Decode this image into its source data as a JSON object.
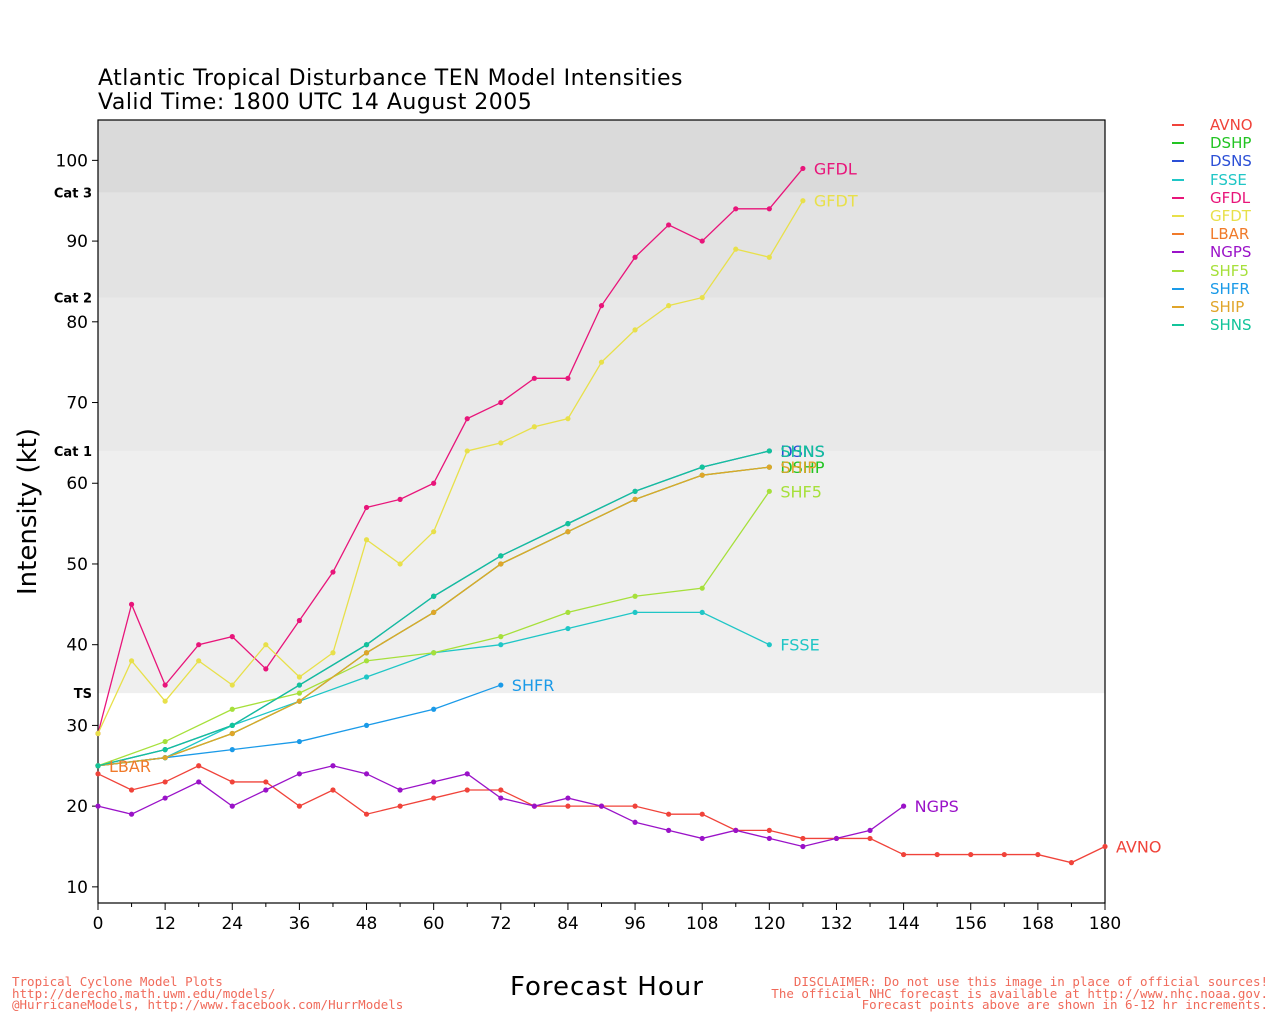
{
  "chart_data": {
    "type": "line",
    "title": "Atlantic Tropical Disturbance TEN Model Intensities",
    "subtitle": "Valid Time: 1800 UTC 14 August 2005",
    "xlabel": "Forecast Hour",
    "ylabel": "Intensity (kt)",
    "xlim": [
      0,
      180
    ],
    "ylim": [
      8,
      105
    ],
    "x_ticks": [
      0,
      12,
      24,
      36,
      48,
      60,
      72,
      84,
      96,
      108,
      120,
      132,
      144,
      156,
      168,
      180
    ],
    "y_ticks": [
      10,
      20,
      30,
      40,
      50,
      60,
      70,
      80,
      90,
      100
    ],
    "bands": [
      {
        "label": "TS",
        "from": 34,
        "to": 64,
        "color": "#efefef"
      },
      {
        "label": "Cat 1",
        "from": 64,
        "to": 83,
        "color": "#e9e9e9"
      },
      {
        "label": "Cat 2",
        "from": 83,
        "to": 96,
        "color": "#e3e3e3"
      },
      {
        "label": "Cat 3",
        "from": 96,
        "to": 105,
        "color": "#dadada"
      }
    ],
    "legend_position": "right",
    "series": [
      {
        "name": "AVNO",
        "color": "#f0433a",
        "points": [
          [
            0,
            24
          ],
          [
            6,
            22
          ],
          [
            12,
            23
          ],
          [
            18,
            25
          ],
          [
            24,
            23
          ],
          [
            30,
            23
          ],
          [
            36,
            20
          ],
          [
            42,
            22
          ],
          [
            48,
            19
          ],
          [
            54,
            20
          ],
          [
            60,
            21
          ],
          [
            66,
            22
          ],
          [
            72,
            22
          ],
          [
            78,
            20
          ],
          [
            84,
            20
          ],
          [
            90,
            20
          ],
          [
            96,
            20
          ],
          [
            102,
            19
          ],
          [
            108,
            19
          ],
          [
            114,
            17
          ],
          [
            120,
            17
          ],
          [
            126,
            16
          ],
          [
            132,
            16
          ],
          [
            138,
            16
          ],
          [
            144,
            14
          ],
          [
            150,
            14
          ],
          [
            156,
            14
          ],
          [
            162,
            14
          ],
          [
            168,
            14
          ],
          [
            174,
            13
          ],
          [
            180,
            15
          ]
        ]
      },
      {
        "name": "DSHP",
        "color": "#22c422",
        "points": [
          [
            0,
            25
          ],
          [
            12,
            26
          ],
          [
            24,
            29
          ],
          [
            36,
            33
          ],
          [
            48,
            39
          ],
          [
            60,
            44
          ],
          [
            72,
            50
          ],
          [
            84,
            54
          ],
          [
            96,
            58
          ],
          [
            108,
            61
          ],
          [
            120,
            62
          ]
        ]
      },
      {
        "name": "DSNS",
        "color": "#2b4fd6",
        "points": [
          [
            0,
            25
          ],
          [
            12,
            27
          ],
          [
            24,
            30
          ],
          [
            36,
            35
          ],
          [
            48,
            40
          ],
          [
            60,
            46
          ],
          [
            72,
            51
          ],
          [
            84,
            55
          ],
          [
            96,
            59
          ],
          [
            108,
            62
          ],
          [
            120,
            64
          ]
        ]
      },
      {
        "name": "FSSE",
        "color": "#1fc6c6",
        "points": [
          [
            0,
            25
          ],
          [
            12,
            26
          ],
          [
            24,
            30
          ],
          [
            36,
            33
          ],
          [
            48,
            36
          ],
          [
            60,
            39
          ],
          [
            72,
            40
          ],
          [
            84,
            42
          ],
          [
            96,
            44
          ],
          [
            108,
            44
          ],
          [
            120,
            40
          ]
        ]
      },
      {
        "name": "GFDL",
        "color": "#e8157a",
        "points": [
          [
            0,
            29
          ],
          [
            6,
            45
          ],
          [
            12,
            35
          ],
          [
            18,
            40
          ],
          [
            24,
            41
          ],
          [
            30,
            37
          ],
          [
            36,
            43
          ],
          [
            42,
            49
          ],
          [
            48,
            57
          ],
          [
            54,
            58
          ],
          [
            60,
            60
          ],
          [
            66,
            68
          ],
          [
            72,
            70
          ],
          [
            78,
            73
          ],
          [
            84,
            73
          ],
          [
            90,
            82
          ],
          [
            96,
            88
          ],
          [
            102,
            92
          ],
          [
            108,
            90
          ],
          [
            114,
            94
          ],
          [
            120,
            94
          ],
          [
            126,
            99
          ]
        ]
      },
      {
        "name": "GFDT",
        "color": "#e8e04a",
        "points": [
          [
            0,
            29
          ],
          [
            6,
            38
          ],
          [
            12,
            33
          ],
          [
            18,
            38
          ],
          [
            24,
            35
          ],
          [
            30,
            40
          ],
          [
            36,
            36
          ],
          [
            42,
            39
          ],
          [
            48,
            53
          ],
          [
            54,
            50
          ],
          [
            60,
            54
          ],
          [
            66,
            64
          ],
          [
            72,
            65
          ],
          [
            78,
            67
          ],
          [
            84,
            68
          ],
          [
            90,
            75
          ],
          [
            96,
            79
          ],
          [
            102,
            82
          ],
          [
            108,
            83
          ],
          [
            114,
            89
          ],
          [
            120,
            88
          ],
          [
            126,
            95
          ]
        ]
      },
      {
        "name": "LBAR",
        "color": "#f07a2a",
        "points": [
          [
            0,
            25
          ]
        ]
      },
      {
        "name": "NGPS",
        "color": "#9a12c8",
        "points": [
          [
            0,
            20
          ],
          [
            6,
            19
          ],
          [
            12,
            21
          ],
          [
            18,
            23
          ],
          [
            24,
            20
          ],
          [
            30,
            22
          ],
          [
            36,
            24
          ],
          [
            42,
            25
          ],
          [
            48,
            24
          ],
          [
            54,
            22
          ],
          [
            60,
            23
          ],
          [
            66,
            24
          ],
          [
            72,
            21
          ],
          [
            78,
            20
          ],
          [
            84,
            21
          ],
          [
            90,
            20
          ],
          [
            96,
            18
          ],
          [
            102,
            17
          ],
          [
            108,
            16
          ],
          [
            114,
            17
          ],
          [
            120,
            16
          ],
          [
            126,
            15
          ],
          [
            132,
            16
          ],
          [
            138,
            17
          ],
          [
            144,
            20
          ]
        ]
      },
      {
        "name": "SHF5",
        "color": "#a6e03a",
        "points": [
          [
            0,
            25
          ],
          [
            12,
            28
          ],
          [
            24,
            32
          ],
          [
            36,
            34
          ],
          [
            48,
            38
          ],
          [
            60,
            39
          ],
          [
            72,
            41
          ],
          [
            84,
            44
          ],
          [
            96,
            46
          ],
          [
            108,
            47
          ],
          [
            120,
            59
          ]
        ]
      },
      {
        "name": "SHFR",
        "color": "#1a9ae8",
        "points": [
          [
            0,
            25
          ],
          [
            12,
            26
          ],
          [
            24,
            27
          ],
          [
            36,
            28
          ],
          [
            48,
            30
          ],
          [
            60,
            32
          ],
          [
            72,
            35
          ]
        ]
      },
      {
        "name": "SHIP",
        "color": "#e0a52a",
        "points": [
          [
            0,
            25
          ],
          [
            12,
            26
          ],
          [
            24,
            29
          ],
          [
            36,
            33
          ],
          [
            48,
            39
          ],
          [
            60,
            44
          ],
          [
            72,
            50
          ],
          [
            84,
            54
          ],
          [
            96,
            58
          ],
          [
            108,
            61
          ],
          [
            120,
            62
          ]
        ]
      },
      {
        "name": "SHNS",
        "color": "#12c49a",
        "points": [
          [
            0,
            25
          ],
          [
            12,
            27
          ],
          [
            24,
            30
          ],
          [
            36,
            35
          ],
          [
            48,
            40
          ],
          [
            60,
            46
          ],
          [
            72,
            51
          ],
          [
            84,
            55
          ],
          [
            96,
            59
          ],
          [
            108,
            62
          ],
          [
            120,
            64
          ]
        ]
      }
    ],
    "end_labels": [
      {
        "text": "GFDL",
        "series": "GFDL"
      },
      {
        "text": "GFDT",
        "series": "GFDT"
      },
      {
        "text": "DSNS",
        "series": "DSNS"
      },
      {
        "text": "SHNS",
        "series": "SHNS"
      },
      {
        "text": "DSHP",
        "series": "DSHP"
      },
      {
        "text": "SHIP",
        "series": "SHIP"
      },
      {
        "text": "SHF5",
        "series": "SHF5"
      },
      {
        "text": "FSSE",
        "series": "FSSE"
      },
      {
        "text": "SHFR",
        "series": "SHFR"
      },
      {
        "text": "NGPS",
        "series": "NGPS"
      },
      {
        "text": "AVNO",
        "series": "AVNO"
      },
      {
        "text": "LBAR",
        "series": "LBAR"
      }
    ]
  },
  "footer": {
    "left_lines": [
      "Tropical Cyclone Model Plots",
      "http://derecho.math.uwm.edu/models/",
      "@HurricaneModels, http://www.facebook.com/HurrModels"
    ],
    "right_lines": [
      "DISCLAIMER: Do not use this image in place of official sources!",
      "The official NHC forecast is available at http://www.nhc.noaa.gov.",
      "Forecast points above are shown in 6-12 hr increments."
    ]
  }
}
